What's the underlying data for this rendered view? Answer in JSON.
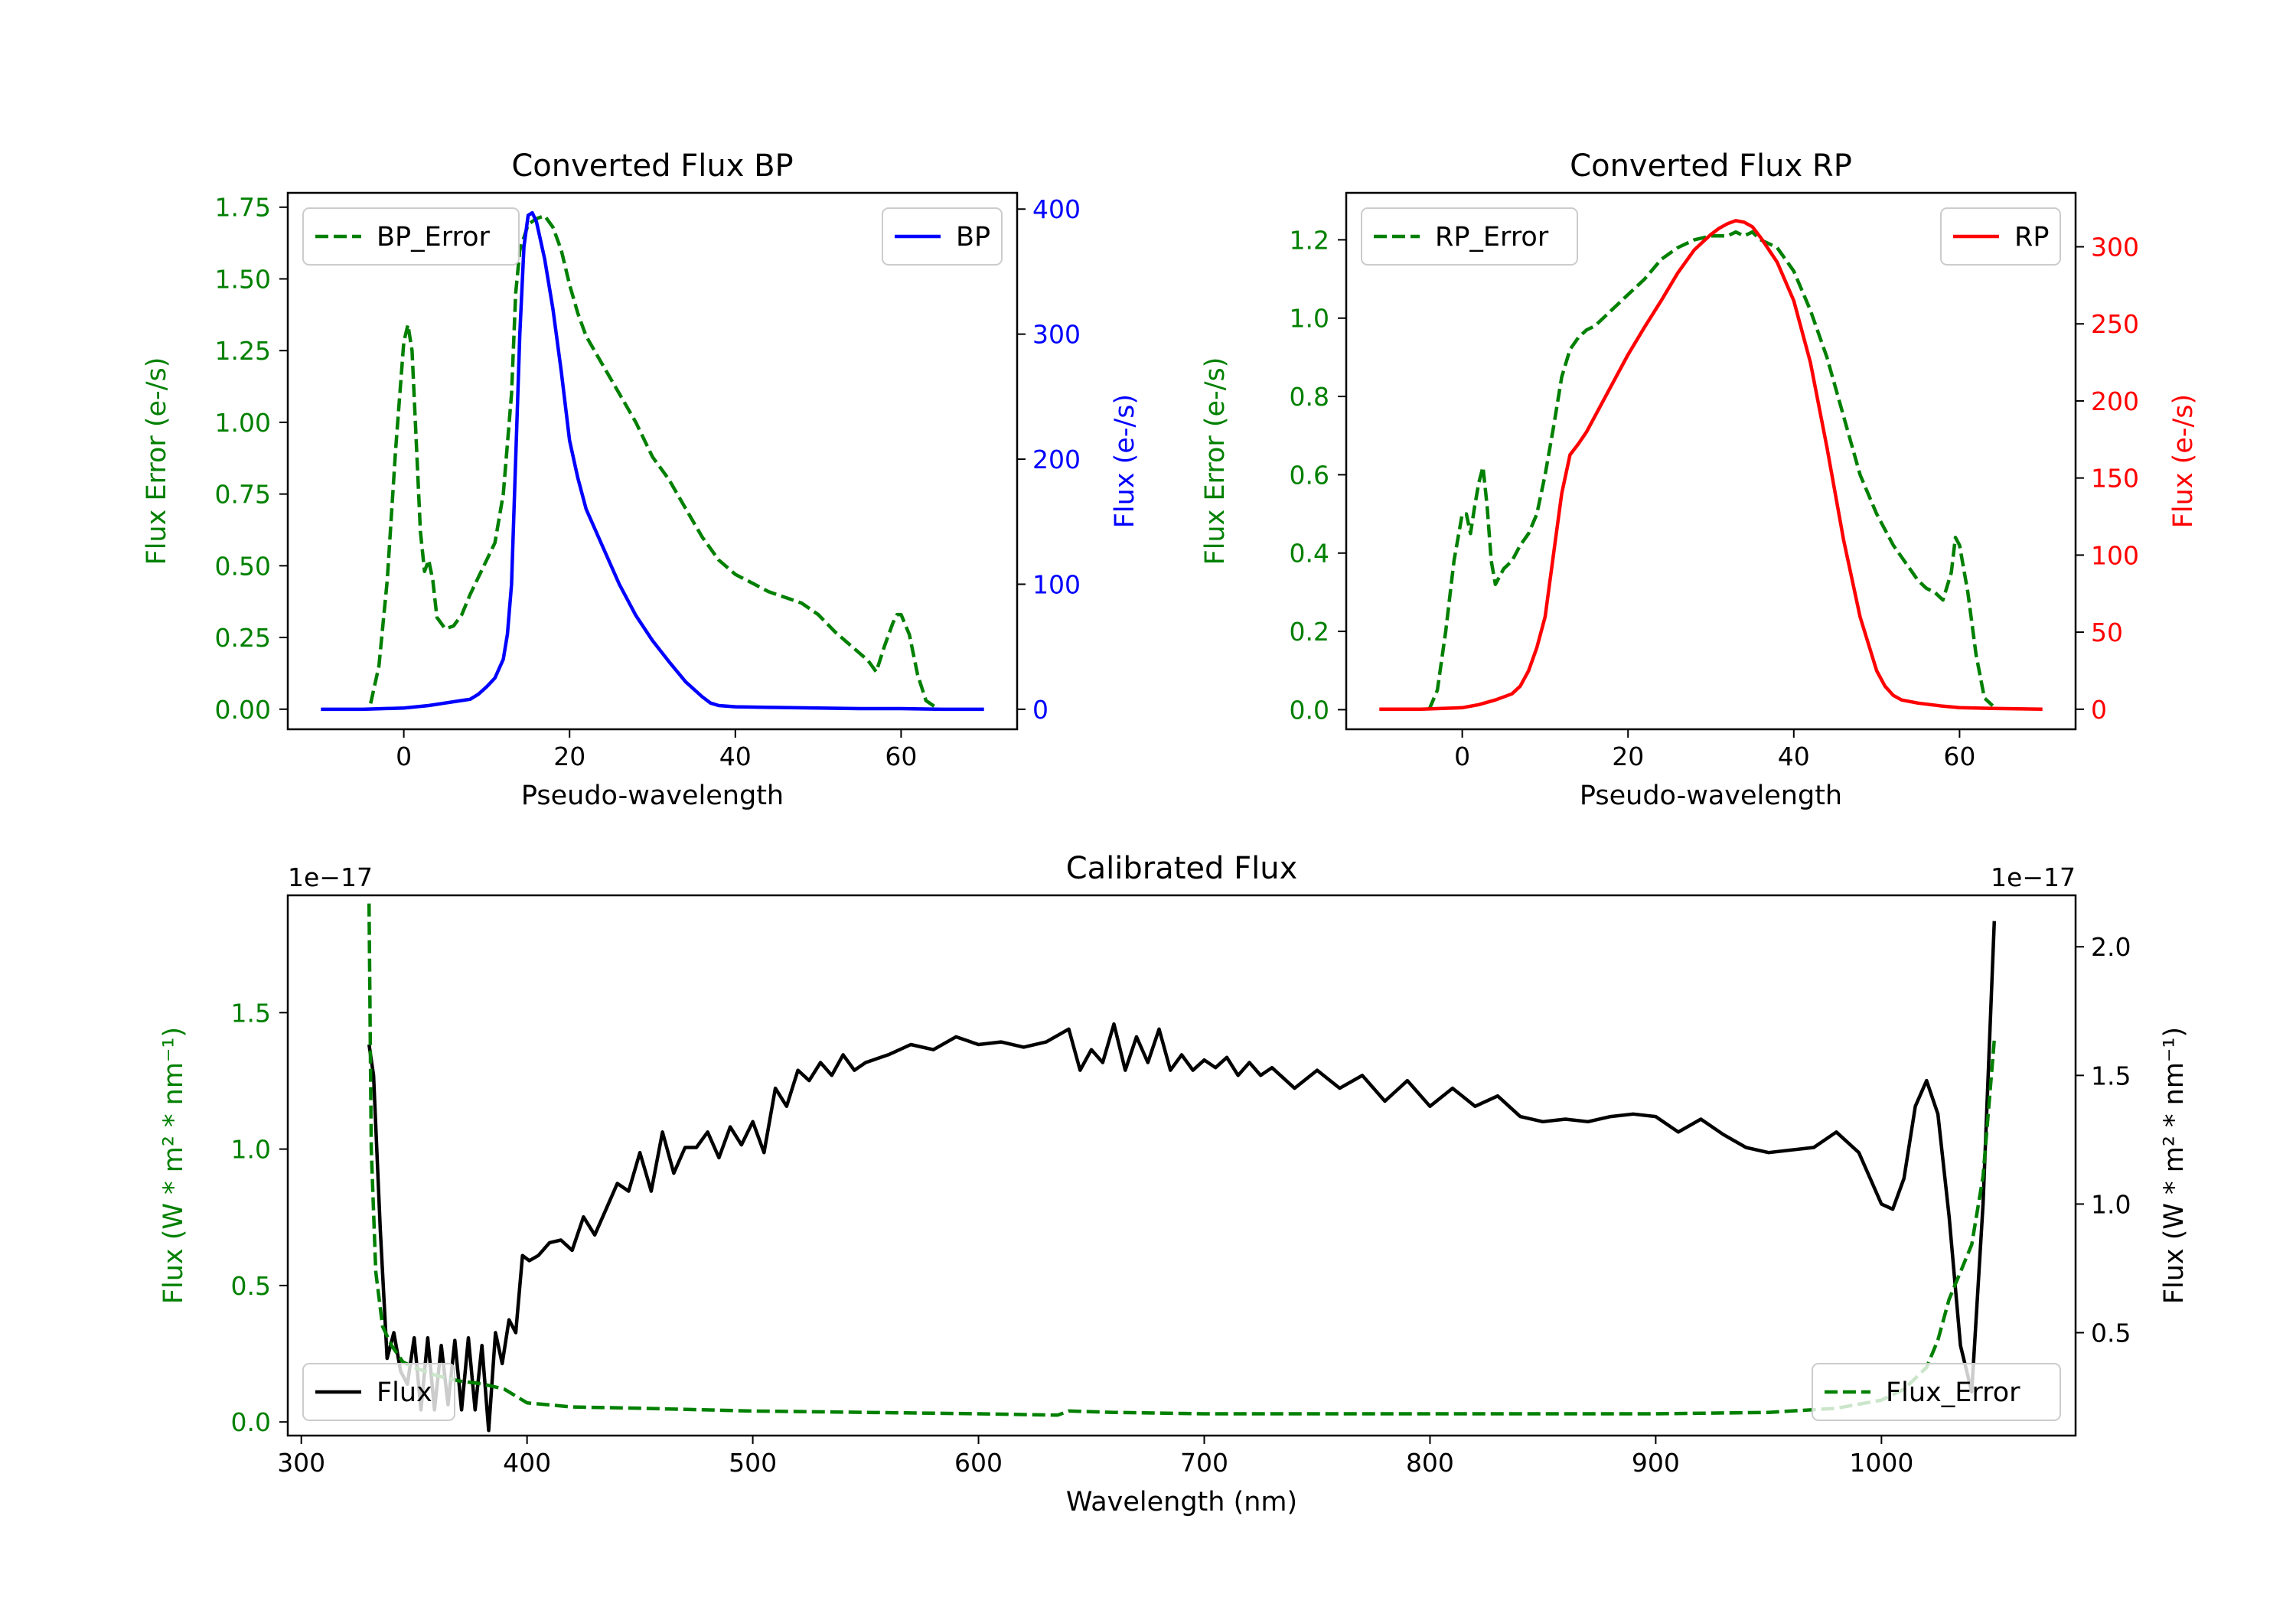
{
  "colors": {
    "error": "#008000",
    "bp": "#0000ff",
    "rp": "#ff0000",
    "flux": "#000000",
    "axis": "#000000"
  },
  "chart_data": [
    {
      "type": "line",
      "title": "Converted Flux BP",
      "xlabel": "Pseudo-wavelength",
      "ylabel_left": "Flux Error (e-/s)",
      "ylabel_right": "Flux (e-/s)",
      "xlim": [
        -14,
        74
      ],
      "ylim_left": [
        -0.07,
        1.8
      ],
      "ylim_right": [
        -16,
        413
      ],
      "xticks": [
        "0",
        "20",
        "40",
        "60"
      ],
      "yticks_left": [
        "0.00",
        "0.25",
        "0.50",
        "0.75",
        "1.00",
        "1.25",
        "1.50",
        "1.75"
      ],
      "yticks_right": [
        "0",
        "100",
        "200",
        "300",
        "400"
      ],
      "series": [
        {
          "name": "BP_Error",
          "axis": "left",
          "style": "dashed",
          "x": [
            -4,
            -3,
            -2,
            -1,
            0,
            0.5,
            1,
            2,
            2.5,
            3,
            3.5,
            4,
            5,
            6,
            7,
            8,
            9,
            10,
            11,
            12,
            13,
            13.5,
            14,
            15,
            16,
            17,
            18,
            19,
            20,
            21,
            22,
            23,
            24,
            25,
            26,
            28,
            30,
            32,
            34,
            36,
            38,
            40,
            42,
            44,
            46,
            48,
            50,
            52,
            54,
            56,
            57,
            58,
            59,
            59.5,
            60,
            61,
            62,
            63,
            64
          ],
          "y": [
            0.02,
            0.15,
            0.45,
            0.9,
            1.28,
            1.34,
            1.25,
            0.62,
            0.48,
            0.52,
            0.45,
            0.32,
            0.28,
            0.29,
            0.33,
            0.4,
            0.46,
            0.52,
            0.58,
            0.75,
            1.1,
            1.45,
            1.6,
            1.69,
            1.71,
            1.72,
            1.68,
            1.6,
            1.48,
            1.38,
            1.3,
            1.25,
            1.2,
            1.15,
            1.1,
            1.0,
            0.88,
            0.8,
            0.7,
            0.6,
            0.52,
            0.47,
            0.44,
            0.41,
            0.39,
            0.37,
            0.33,
            0.27,
            0.22,
            0.17,
            0.13,
            0.22,
            0.3,
            0.33,
            0.33,
            0.26,
            0.12,
            0.03,
            0.01
          ]
        },
        {
          "name": "BP",
          "axis": "right",
          "style": "solid",
          "x": [
            -10,
            -5,
            0,
            3,
            5,
            7,
            8,
            9,
            10,
            11,
            12,
            12.5,
            13,
            13.5,
            14,
            14.5,
            15,
            15.5,
            16,
            17,
            18,
            19,
            20,
            21,
            22,
            24,
            26,
            28,
            30,
            32,
            34,
            36,
            37,
            38,
            40,
            44,
            50,
            55,
            60,
            65,
            70
          ],
          "y": [
            0,
            0,
            1,
            3,
            5,
            7,
            8,
            12,
            18,
            25,
            40,
            60,
            100,
            200,
            300,
            370,
            395,
            397,
            390,
            360,
            320,
            270,
            215,
            185,
            160,
            130,
            100,
            75,
            55,
            38,
            22,
            10,
            5,
            3,
            2,
            1.5,
            1,
            0.5,
            0.5,
            0,
            0
          ]
        }
      ],
      "legend": [
        {
          "label": "BP_Error",
          "position": "upper-left"
        },
        {
          "label": "BP",
          "position": "upper-right"
        }
      ]
    },
    {
      "type": "line",
      "title": "Converted Flux RP",
      "xlabel": "Pseudo-wavelength",
      "ylabel_left": "Flux Error (e-/s)",
      "ylabel_right": "Flux (e-/s)",
      "xlim": [
        -14,
        74
      ],
      "ylim_left": [
        -0.05,
        1.32
      ],
      "ylim_right": [
        -13,
        335
      ],
      "xticks": [
        "0",
        "20",
        "40",
        "60"
      ],
      "yticks_left": [
        "0.0",
        "0.2",
        "0.4",
        "0.6",
        "0.8",
        "1.0",
        "1.2"
      ],
      "yticks_right": [
        "0",
        "50",
        "100",
        "150",
        "200",
        "250",
        "300"
      ],
      "series": [
        {
          "name": "RP_Error",
          "axis": "left",
          "style": "dashed",
          "x": [
            -4,
            -3,
            -2,
            -1,
            0,
            0.5,
            1,
            1.5,
            2,
            2.5,
            3,
            3.5,
            4,
            5,
            6,
            7,
            8,
            9,
            10,
            11,
            12,
            13,
            14,
            15,
            16,
            18,
            20,
            22,
            24,
            26,
            28,
            30,
            32,
            33,
            34,
            35,
            36,
            38,
            40,
            42,
            44,
            46,
            48,
            50,
            52,
            54,
            55,
            56,
            57,
            58,
            59,
            59.5,
            60,
            61,
            62,
            63,
            64
          ],
          "y": [
            0.0,
            0.05,
            0.2,
            0.38,
            0.5,
            0.5,
            0.45,
            0.52,
            0.58,
            0.62,
            0.52,
            0.38,
            0.32,
            0.36,
            0.38,
            0.42,
            0.45,
            0.5,
            0.6,
            0.72,
            0.85,
            0.92,
            0.95,
            0.97,
            0.98,
            1.02,
            1.06,
            1.1,
            1.15,
            1.18,
            1.2,
            1.21,
            1.21,
            1.22,
            1.21,
            1.22,
            1.2,
            1.18,
            1.12,
            1.02,
            0.9,
            0.75,
            0.6,
            0.5,
            0.42,
            0.36,
            0.33,
            0.31,
            0.3,
            0.28,
            0.35,
            0.44,
            0.42,
            0.3,
            0.14,
            0.03,
            0.01
          ]
        },
        {
          "name": "RP",
          "axis": "right",
          "style": "solid",
          "x": [
            -10,
            -5,
            0,
            2,
            4,
            6,
            7,
            8,
            9,
            10,
            11,
            12,
            13,
            14,
            15,
            16,
            18,
            20,
            22,
            24,
            26,
            28,
            30,
            31,
            32,
            33,
            34,
            35,
            36,
            38,
            40,
            42,
            44,
            46,
            48,
            50,
            51,
            52,
            53,
            55,
            58,
            60,
            64,
            70
          ],
          "y": [
            0,
            0,
            1,
            3,
            6,
            10,
            15,
            25,
            40,
            60,
            100,
            140,
            165,
            172,
            180,
            190,
            210,
            230,
            248,
            265,
            283,
            298,
            308,
            312,
            315,
            317,
            316,
            313,
            306,
            290,
            265,
            225,
            170,
            110,
            60,
            25,
            15,
            9,
            6,
            4,
            2,
            1,
            0.5,
            0
          ]
        }
      ],
      "legend": [
        {
          "label": "RP_Error",
          "position": "upper-left"
        },
        {
          "label": "RP",
          "position": "upper-right"
        }
      ]
    },
    {
      "type": "line",
      "title": "Calibrated Flux",
      "xlabel": "Wavelength (nm)",
      "ylabel_left": "Flux (W * m² * nm⁻¹)",
      "ylabel_right": "Flux (W * m² * nm⁻¹)",
      "offset_left": "1e−17",
      "offset_right": "1e−17",
      "xlim": [
        294,
        1086
      ],
      "ylim_left": [
        -0.05,
        1.93
      ],
      "ylim_right": [
        0.1,
        2.2
      ],
      "xticks": [
        "300",
        "400",
        "500",
        "600",
        "700",
        "800",
        "900",
        "1000"
      ],
      "yticks_left": [
        "0.0",
        "0.5",
        "1.0",
        "1.5"
      ],
      "yticks_right": [
        "0.5",
        "1.0",
        "1.5",
        "2.0"
      ],
      "series": [
        {
          "name": "Flux",
          "axis": "right",
          "style": "solid",
          "x": [
            330,
            332,
            335,
            338,
            341,
            344,
            347,
            350,
            353,
            356,
            359,
            362,
            365,
            368,
            371,
            374,
            377,
            380,
            383,
            386,
            389,
            392,
            395,
            398,
            401,
            405,
            410,
            415,
            420,
            425,
            430,
            435,
            440,
            445,
            450,
            455,
            460,
            465,
            470,
            475,
            480,
            485,
            490,
            495,
            500,
            505,
            510,
            515,
            520,
            525,
            530,
            535,
            540,
            545,
            550,
            560,
            570,
            580,
            590,
            600,
            610,
            620,
            630,
            640,
            645,
            650,
            655,
            660,
            665,
            670,
            675,
            680,
            685,
            690,
            695,
            700,
            705,
            710,
            715,
            720,
            725,
            730,
            740,
            750,
            760,
            770,
            780,
            790,
            800,
            810,
            820,
            830,
            840,
            850,
            860,
            870,
            880,
            890,
            900,
            910,
            920,
            930,
            940,
            950,
            960,
            970,
            980,
            990,
            1000,
            1005,
            1010,
            1015,
            1020,
            1025,
            1030,
            1035,
            1040,
            1045,
            1050
          ],
          "y": [
            1.62,
            1.5,
            0.9,
            0.4,
            0.5,
            0.35,
            0.3,
            0.48,
            0.2,
            0.48,
            0.2,
            0.45,
            0.22,
            0.47,
            0.2,
            0.48,
            0.2,
            0.45,
            0.12,
            0.5,
            0.38,
            0.55,
            0.5,
            0.8,
            0.78,
            0.8,
            0.85,
            0.86,
            0.82,
            0.95,
            0.88,
            0.98,
            1.08,
            1.05,
            1.2,
            1.05,
            1.28,
            1.12,
            1.22,
            1.22,
            1.28,
            1.18,
            1.3,
            1.23,
            1.32,
            1.2,
            1.45,
            1.38,
            1.52,
            1.48,
            1.55,
            1.5,
            1.58,
            1.52,
            1.55,
            1.58,
            1.62,
            1.6,
            1.65,
            1.62,
            1.63,
            1.61,
            1.63,
            1.68,
            1.52,
            1.6,
            1.55,
            1.7,
            1.52,
            1.65,
            1.55,
            1.68,
            1.52,
            1.58,
            1.52,
            1.56,
            1.53,
            1.57,
            1.5,
            1.55,
            1.5,
            1.53,
            1.45,
            1.52,
            1.45,
            1.5,
            1.4,
            1.48,
            1.38,
            1.45,
            1.38,
            1.42,
            1.34,
            1.32,
            1.33,
            1.32,
            1.34,
            1.35,
            1.34,
            1.28,
            1.33,
            1.27,
            1.22,
            1.2,
            1.21,
            1.22,
            1.28,
            1.2,
            1.0,
            0.98,
            1.1,
            1.38,
            1.48,
            1.35,
            0.95,
            0.45,
            0.27,
            1.0,
            2.1
          ]
        },
        {
          "name": "Flux_Error",
          "axis": "left",
          "style": "dashed",
          "x": [
            330,
            331,
            333,
            336,
            340,
            345,
            350,
            360,
            370,
            380,
            390,
            400,
            420,
            450,
            500,
            550,
            600,
            635,
            640,
            660,
            700,
            750,
            800,
            850,
            900,
            950,
            980,
            1000,
            1010,
            1020,
            1025,
            1030,
            1035,
            1040,
            1045,
            1050
          ],
          "y": [
            1.9,
            1.0,
            0.55,
            0.35,
            0.28,
            0.22,
            0.2,
            0.17,
            0.15,
            0.14,
            0.12,
            0.07,
            0.055,
            0.05,
            0.04,
            0.035,
            0.03,
            0.025,
            0.04,
            0.035,
            0.03,
            0.03,
            0.03,
            0.03,
            0.03,
            0.035,
            0.05,
            0.08,
            0.12,
            0.2,
            0.3,
            0.45,
            0.55,
            0.65,
            0.9,
            1.4
          ]
        }
      ],
      "legend": [
        {
          "label": "Flux",
          "position": "lower-left"
        },
        {
          "label": "Flux_Error",
          "position": "lower-right"
        }
      ]
    }
  ]
}
